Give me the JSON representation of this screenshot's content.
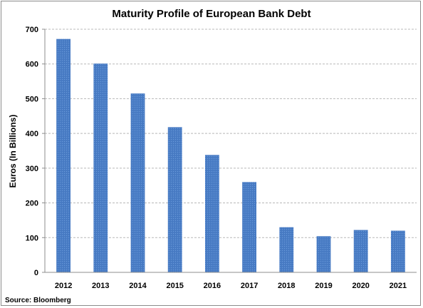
{
  "chart_data": {
    "type": "bar",
    "title": "Maturity Profile of European Bank Debt",
    "ylabel": "Euros (In Billions)",
    "xlabel": "",
    "categories": [
      "2012",
      "2013",
      "2014",
      "2015",
      "2016",
      "2017",
      "2018",
      "2019",
      "2020",
      "2021"
    ],
    "values": [
      672,
      601,
      515,
      418,
      338,
      260,
      130,
      104,
      122,
      120
    ],
    "ylim": [
      0,
      700
    ],
    "yticks": [
      0,
      100,
      200,
      300,
      400,
      500,
      600,
      700
    ],
    "grid": true,
    "legend": "none",
    "bar_color": "#4a7dc6",
    "source": "Source: Bloomberg"
  }
}
